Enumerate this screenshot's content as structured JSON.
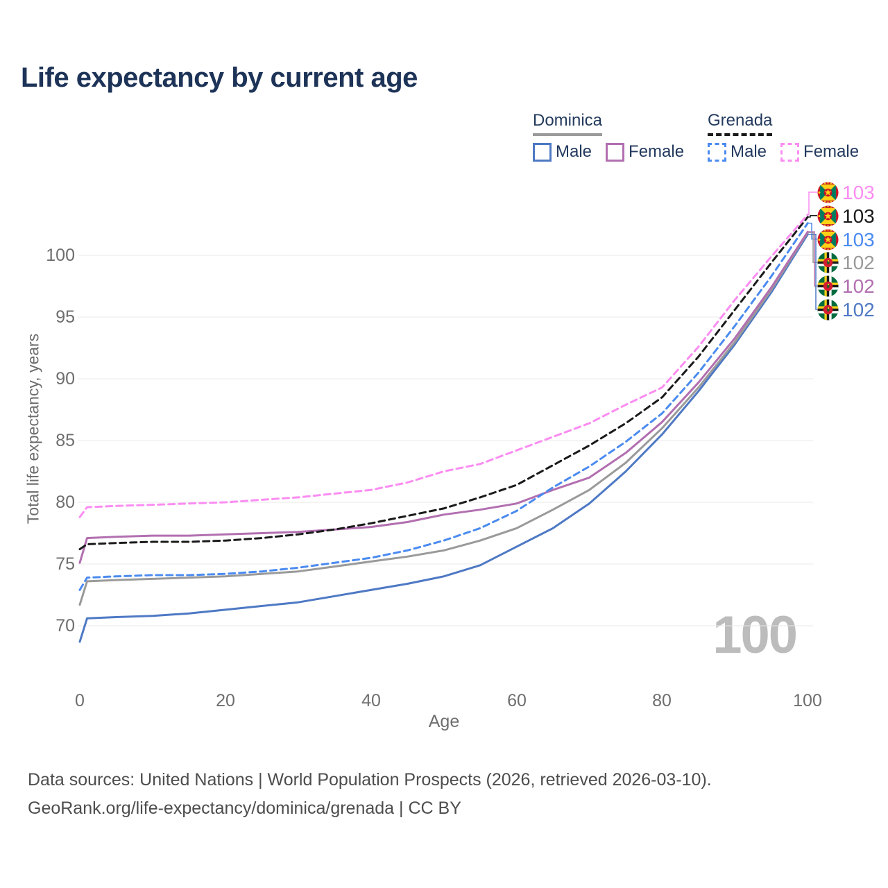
{
  "page": {
    "title": "Life expectancy by current age",
    "watermark_age": "100",
    "footer": {
      "line1": "Data sources: United Nations | World Population Prospects (2026, retrieved 2026-03-10).",
      "line2": "GeoRank.org/life-expectancy/dominica/grenada | CC BY"
    }
  },
  "legend": {
    "groups": [
      {
        "label": "Dominica",
        "line_style": "solid",
        "underline_color": "#9a9a9a",
        "items": [
          {
            "label": "Male",
            "color": "#4e79c4"
          },
          {
            "label": "Female",
            "color": "#b26fb0"
          }
        ]
      },
      {
        "label": "Grenada",
        "line_style": "dashed",
        "underline_color": "#1a1a1a",
        "items": [
          {
            "label": "Male",
            "color": "#4b8bf0"
          },
          {
            "label": "Female",
            "color": "#fb8df2"
          }
        ]
      }
    ]
  },
  "chart_data": {
    "type": "line",
    "title": "Life expectancy by current age",
    "xlabel": "Age",
    "ylabel": "Total life expectancy, years",
    "xlim": [
      0,
      100
    ],
    "ylim": [
      68,
      104
    ],
    "xticks": [
      0,
      20,
      40,
      60,
      80,
      100
    ],
    "yticks": [
      100,
      95,
      90,
      85,
      80,
      75,
      70
    ],
    "grid": "horizontal",
    "gridline_color": "#e9e9e9",
    "ages": [
      0,
      1,
      5,
      10,
      15,
      20,
      25,
      30,
      35,
      40,
      45,
      50,
      55,
      60,
      65,
      70,
      75,
      80,
      85,
      90,
      95,
      100
    ],
    "series": [
      {
        "id": "dominica-male",
        "name": "Dominica Male",
        "color": "#4e79c4",
        "dash": false,
        "values": [
          68.7,
          70.6,
          70.7,
          70.8,
          71.0,
          71.3,
          71.6,
          71.9,
          72.4,
          72.9,
          73.4,
          74.0,
          74.9,
          76.4,
          77.9,
          79.9,
          82.5,
          85.5,
          89.0,
          92.8,
          97.0,
          101.7
        ]
      },
      {
        "id": "dominica-total",
        "name": "Dominica Both sexes",
        "color": "#9a9a9a",
        "dash": false,
        "values": [
          71.7,
          73.6,
          73.7,
          73.8,
          73.9,
          74.0,
          74.2,
          74.4,
          74.8,
          75.2,
          75.6,
          76.1,
          76.9,
          77.9,
          79.4,
          81.0,
          83.2,
          86.0,
          89.3,
          93.0,
          97.2,
          101.85
        ]
      },
      {
        "id": "dominica-female",
        "name": "Dominica Female",
        "color": "#b26fb0",
        "dash": false,
        "values": [
          75.1,
          77.1,
          77.2,
          77.3,
          77.3,
          77.4,
          77.5,
          77.6,
          77.8,
          78.0,
          78.4,
          79.0,
          79.4,
          79.9,
          81.0,
          82.0,
          84.0,
          86.5,
          89.7,
          93.3,
          97.4,
          101.9
        ]
      },
      {
        "id": "grenada-male",
        "name": "Grenada Male",
        "color": "#4b8bf0",
        "dash": true,
        "values": [
          72.9,
          73.9,
          74.0,
          74.1,
          74.1,
          74.2,
          74.4,
          74.7,
          75.1,
          75.5,
          76.1,
          76.9,
          77.9,
          79.3,
          81.2,
          82.9,
          84.9,
          87.2,
          90.5,
          94.3,
          98.3,
          102.6
        ]
      },
      {
        "id": "grenada-total",
        "name": "Grenada Both sexes",
        "color": "#1a1a1a",
        "dash": true,
        "values": [
          76.2,
          76.6,
          76.7,
          76.8,
          76.8,
          76.9,
          77.1,
          77.4,
          77.8,
          78.3,
          78.9,
          79.5,
          80.4,
          81.4,
          83.0,
          84.6,
          86.4,
          88.5,
          91.8,
          95.6,
          99.4,
          103.1
        ]
      },
      {
        "id": "grenada-female",
        "name": "Grenada Female",
        "color": "#fb8df2",
        "dash": true,
        "values": [
          78.8,
          79.6,
          79.7,
          79.8,
          79.9,
          80.0,
          80.2,
          80.4,
          80.7,
          81.0,
          81.6,
          82.5,
          83.1,
          84.2,
          85.3,
          86.4,
          87.9,
          89.3,
          92.6,
          96.4,
          99.9,
          103.3
        ]
      }
    ],
    "end_labels": [
      {
        "value": "103",
        "color": "#fb8df2",
        "flag": "grenada",
        "series": "grenada-female"
      },
      {
        "value": "103",
        "color": "#1a1a1a",
        "flag": "grenada",
        "series": "grenada-total"
      },
      {
        "value": "103",
        "color": "#4b8bf0",
        "flag": "grenada",
        "series": "grenada-male"
      },
      {
        "value": "102",
        "color": "#9a9a9a",
        "flag": "dominica",
        "series": "dominica-total"
      },
      {
        "value": "102",
        "color": "#b26fb0",
        "flag": "dominica",
        "series": "dominica-female"
      },
      {
        "value": "102",
        "color": "#4e79c4",
        "flag": "dominica",
        "series": "dominica-male"
      }
    ],
    "legend_position": "top-right"
  }
}
